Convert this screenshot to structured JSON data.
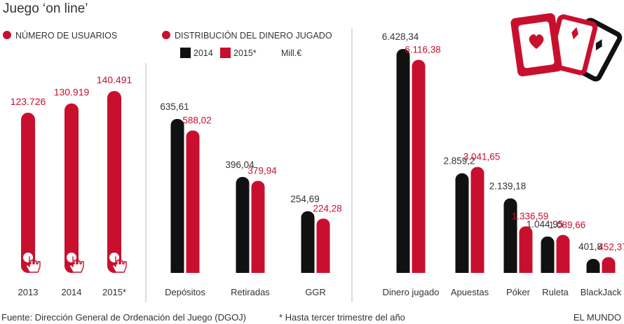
{
  "title": "Juego ‘on line’",
  "colors": {
    "red": "#c8102e",
    "black": "#111111",
    "text": "#333333",
    "rule": "#bbbbbb"
  },
  "chart_data": [
    {
      "type": "bar",
      "legend": "NÚMERO DE USUARIOS",
      "categories": [
        "2013",
        "2014",
        "2015*"
      ],
      "values": [
        123726,
        130919,
        140491
      ],
      "labels": [
        "123.726",
        "130.919",
        "140.491"
      ],
      "icon": "hand-cursor-icon"
    },
    {
      "type": "bar",
      "legend": "DISTRIBUCIÓN DEL DINERO JUGADO",
      "unit": "Mill.€",
      "series_names": [
        "2014",
        "2015*"
      ],
      "categories": [
        "Depósitos",
        "Retiradas",
        "GGR",
        "Dinero jugado",
        "Apuestas",
        "Póker",
        "Ruleta",
        "BlackJack"
      ],
      "series": [
        {
          "name": "2014",
          "values": [
            635.61,
            396.04,
            254.69,
            6428.34,
            2859.2,
            2139.18,
            1044.95,
            401.8
          ],
          "labels": [
            "635,61",
            "396,04",
            "254,69",
            "6.428,34",
            "2.859,2",
            "2.139,18",
            "1.044,95",
            "401,8"
          ]
        },
        {
          "name": "2015*",
          "values": [
            588.02,
            379.94,
            224.28,
            6116.38,
            3041.65,
            1336.59,
            1089.66,
            452.37
          ],
          "labels": [
            "588,02",
            "379,94",
            "224,28",
            "6.116,38",
            "3.041,65",
            "1.336,59",
            "1.089,66",
            "452,37"
          ]
        }
      ]
    }
  ],
  "footer": {
    "source": "Fuente: Dirección General de Ordenación del Juego (DGOJ)",
    "note": "* Hasta tercer trimestre del año",
    "brand": "EL MUNDO"
  },
  "illustration": "playing-cards-icon"
}
